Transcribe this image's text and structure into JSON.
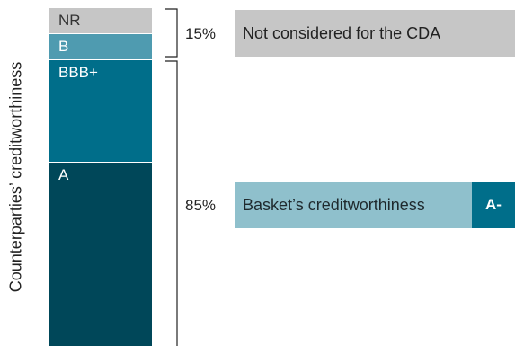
{
  "ylabel": "Counterparties’ creditworthiness",
  "segments": {
    "nr": "NR",
    "b": "B",
    "bbb": "BBB+",
    "a": "A"
  },
  "groups": {
    "not_considered": {
      "pct": "15%",
      "label": "Not considered for the CDA"
    },
    "considered": {
      "pct": "85%",
      "label": "Basket’s creditworthiness",
      "rating": "A-"
    }
  },
  "colors": {
    "nr": "#c6c6c6",
    "b": "#4f9bb0",
    "bbb": "#006e8a",
    "a": "#004759",
    "basket": "#8fc0cc"
  }
}
